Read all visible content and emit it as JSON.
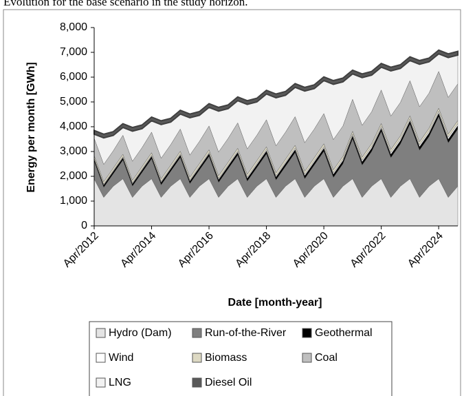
{
  "caption": "Evolution for the base scenario in the study horizon.",
  "chart_data": {
    "type": "stacked-area",
    "x_label": "Date [month-year]",
    "y_label": "Energy per month [GWh]",
    "x": [
      "2012-04",
      "2012-08",
      "2012-12",
      "2013-04",
      "2013-08",
      "2013-12",
      "2014-04",
      "2014-08",
      "2014-12",
      "2015-04",
      "2015-08",
      "2015-12",
      "2016-04",
      "2016-08",
      "2016-12",
      "2017-04",
      "2017-08",
      "2017-12",
      "2018-04",
      "2018-08",
      "2018-12",
      "2019-04",
      "2019-08",
      "2019-12",
      "2020-04",
      "2020-08",
      "2020-12",
      "2021-04",
      "2021-08",
      "2021-12",
      "2022-04",
      "2022-08",
      "2022-12",
      "2023-04",
      "2023-08",
      "2023-12",
      "2024-04",
      "2024-08",
      "2024-12"
    ],
    "xlim": [
      "2012-04",
      "2024-12"
    ],
    "xticks": [
      {
        "value": "2012-04",
        "label": "Apr/2012"
      },
      {
        "value": "2014-04",
        "label": "Apr/2014"
      },
      {
        "value": "2016-04",
        "label": "Apr/2016"
      },
      {
        "value": "2018-04",
        "label": "Apr/2018"
      },
      {
        "value": "2020-04",
        "label": "Apr/2020"
      },
      {
        "value": "2022-04",
        "label": "Apr/2022"
      },
      {
        "value": "2024-04",
        "label": "Apr/2024"
      }
    ],
    "ylim": [
      0,
      8000
    ],
    "yticks": [
      0,
      {
        "value": 1000,
        "label": "1,000"
      },
      {
        "value": 2000,
        "label": "2,000"
      },
      {
        "value": 3000,
        "label": "3,000"
      },
      {
        "value": 4000,
        "label": "4,000"
      },
      {
        "value": 5000,
        "label": "5,000"
      },
      {
        "value": 6000,
        "label": "6,000"
      },
      {
        "value": 7000,
        "label": "7,000"
      },
      {
        "value": 8000,
        "label": "8,000"
      }
    ],
    "series": [
      {
        "name": "Hydro (Dam)",
        "color": "#e4e4e4",
        "values": [
          1900,
          1150,
          1600,
          1900,
          1150,
          1600,
          1900,
          1150,
          1600,
          1900,
          1150,
          1600,
          1900,
          1150,
          1600,
          1900,
          1150,
          1600,
          1900,
          1150,
          1600,
          1900,
          1150,
          1600,
          1900,
          1150,
          1600,
          1900,
          1150,
          1600,
          1900,
          1150,
          1600,
          1900,
          1150,
          1600,
          1900,
          1150,
          1600
        ]
      },
      {
        "name": "Run-of-the-River",
        "color": "#7f7f7f",
        "values": [
          700,
          400,
          500,
          750,
          450,
          550,
          800,
          500,
          600,
          850,
          550,
          650,
          900,
          600,
          700,
          950,
          650,
          750,
          1000,
          700,
          800,
          1050,
          750,
          850,
          1100,
          800,
          900,
          1600,
          1300,
          1400,
          1900,
          1600,
          1700,
          2200,
          1900,
          2000,
          2500,
          2200,
          2300
        ]
      },
      {
        "name": "Geothermal",
        "color": "#000000",
        "values": [
          100,
          100,
          100,
          104,
          104,
          104,
          108,
          108,
          108,
          112,
          112,
          112,
          116,
          116,
          116,
          120,
          120,
          120,
          124,
          124,
          124,
          128,
          128,
          128,
          132,
          132,
          132,
          136,
          136,
          136,
          140,
          140,
          140,
          144,
          144,
          144,
          148,
          148,
          148
        ]
      },
      {
        "name": "Wind",
        "color": "#ffffff",
        "values": [
          30,
          30,
          30,
          34,
          34,
          34,
          38,
          38,
          38,
          42,
          42,
          42,
          46,
          46,
          46,
          50,
          50,
          50,
          54,
          54,
          54,
          58,
          58,
          58,
          62,
          62,
          62,
          66,
          66,
          66,
          70,
          70,
          70,
          74,
          74,
          74,
          78,
          78,
          78
        ]
      },
      {
        "name": "Biomass",
        "color": "#ddd9c3",
        "values": [
          100,
          100,
          100,
          102,
          102,
          102,
          104,
          104,
          104,
          106,
          106,
          106,
          108,
          108,
          108,
          110,
          110,
          110,
          112,
          112,
          112,
          114,
          114,
          114,
          116,
          116,
          116,
          118,
          118,
          118,
          120,
          120,
          120,
          122,
          122,
          122,
          124,
          124,
          124
        ]
      },
      {
        "name": "Coal",
        "color": "#bfbfbf",
        "values": [
          700,
          700,
          700,
          765,
          765,
          765,
          830,
          830,
          830,
          895,
          895,
          895,
          960,
          960,
          960,
          1025,
          1025,
          1025,
          1090,
          1090,
          1090,
          1155,
          1155,
          1155,
          1220,
          1220,
          1220,
          1285,
          1285,
          1285,
          1350,
          1350,
          1350,
          1415,
          1415,
          1415,
          1480,
          1480,
          1480
        ]
      },
      {
        "name": "LNG",
        "color": "#f2f2f2",
        "values": [
          170,
          1070,
          620,
          315,
          1215,
          765,
          460,
          1360,
          910,
          605,
          1505,
          1055,
          750,
          1650,
          1200,
          895,
          1795,
          1345,
          1040,
          1940,
          1490,
          1185,
          2085,
          1635,
          1330,
          2230,
          1780,
          1025,
          1925,
          1475,
          920,
          1820,
          1370,
          815,
          1715,
          1265,
          710,
          1610,
          1160
        ]
      },
      {
        "name": "Diesel Oil",
        "color": "#595959",
        "values": [
          150,
          150,
          150,
          150,
          150,
          150,
          150,
          150,
          150,
          150,
          150,
          150,
          150,
          150,
          150,
          150,
          150,
          150,
          150,
          150,
          150,
          150,
          150,
          150,
          150,
          150,
          150,
          150,
          150,
          150,
          150,
          150,
          150,
          150,
          150,
          150,
          150,
          150,
          150
        ]
      }
    ]
  }
}
